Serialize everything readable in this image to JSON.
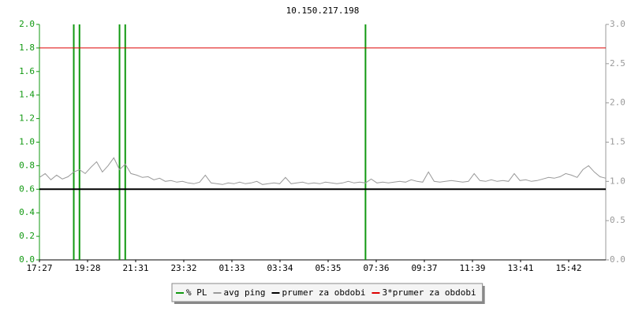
{
  "chart_data": {
    "type": "line",
    "title": "10.150.217.198",
    "x_labels": [
      "17:27",
      "19:28",
      "21:31",
      "23:32",
      "01:33",
      "03:34",
      "05:35",
      "07:36",
      "09:37",
      "11:39",
      "13:41",
      "15:42"
    ],
    "ylim": [
      0,
      2
    ],
    "yticks": [
      {
        "value": 0,
        "label": "0.0"
      },
      0.2,
      0.4,
      0.6,
      0.8,
      {
        "value": 1,
        "label": "1.0"
      },
      1.2,
      1.4,
      1.6,
      1.8,
      {
        "value": 2,
        "label": "2.0"
      }
    ],
    "y2lim": [
      0,
      3
    ],
    "y2ticks": [
      {
        "value": 0,
        "label": "0.0"
      },
      0.5,
      {
        "value": 1,
        "label": "1.0"
      },
      1.5,
      {
        "value": 2,
        "label": "2.0"
      },
      2.5,
      {
        "value": 3,
        "label": "3.0"
      }
    ],
    "y_color": "#119911",
    "y2_color": "#999999",
    "grid": false,
    "legend": "bottom",
    "series": [
      {
        "name": "% PL",
        "color": "#119911",
        "style": "impulse",
        "values": [
          0,
          0,
          0,
          0,
          0,
          0,
          2,
          2,
          0,
          0,
          0,
          0,
          0,
          0,
          2,
          2,
          0,
          0,
          0,
          0,
          0,
          0,
          0,
          0,
          0,
          0,
          0,
          0,
          0,
          0,
          0,
          0,
          0,
          0,
          0,
          0,
          0,
          0,
          0,
          0,
          0,
          0,
          0,
          0,
          0,
          0,
          0,
          0,
          0,
          0,
          0,
          0,
          0,
          0,
          0,
          0,
          0,
          2,
          0,
          0,
          0,
          0,
          0,
          0,
          0,
          0,
          0,
          0,
          0,
          0,
          0,
          0,
          0,
          0,
          0,
          0,
          0,
          0,
          0,
          0,
          0,
          0,
          0,
          0,
          0,
          0,
          0,
          0,
          0,
          0,
          0,
          0,
          0,
          0,
          0,
          0,
          0,
          0,
          0,
          0
        ]
      },
      {
        "name": "avg ping",
        "color": "#999999",
        "axis": "y2",
        "style": "line",
        "values": [
          1.05,
          1.1,
          1.02,
          1.08,
          1.03,
          1.06,
          1.12,
          1.15,
          1.1,
          1.18,
          1.25,
          1.12,
          1.2,
          1.3,
          1.15,
          1.22,
          1.1,
          1.08,
          1.05,
          1.06,
          1.02,
          1.04,
          1.0,
          1.01,
          0.99,
          1.0,
          0.98,
          0.97,
          0.99,
          1.08,
          0.98,
          0.97,
          0.96,
          0.98,
          0.97,
          0.99,
          0.97,
          0.98,
          1.0,
          0.96,
          0.97,
          0.98,
          0.97,
          1.05,
          0.97,
          0.98,
          0.99,
          0.97,
          0.98,
          0.97,
          0.99,
          0.98,
          0.97,
          0.98,
          1.0,
          0.98,
          0.99,
          0.98,
          1.03,
          0.98,
          0.99,
          0.98,
          0.99,
          1.0,
          0.99,
          1.02,
          1.0,
          0.99,
          1.12,
          1.0,
          0.99,
          1.0,
          1.01,
          1.0,
          0.99,
          1.0,
          1.1,
          1.01,
          1.0,
          1.02,
          1.0,
          1.01,
          1.0,
          1.1,
          1.01,
          1.02,
          1.0,
          1.01,
          1.03,
          1.05,
          1.04,
          1.06,
          1.1,
          1.08,
          1.05,
          1.15,
          1.2,
          1.12,
          1.06,
          1.04
        ]
      },
      {
        "name": "prumer za obdobi",
        "color": "#000000",
        "style": "level",
        "values": [
          0.6
        ]
      },
      {
        "name": "3*prumer za obdobi",
        "color": "#dd0000",
        "style": "level",
        "values": [
          1.8
        ]
      }
    ]
  }
}
